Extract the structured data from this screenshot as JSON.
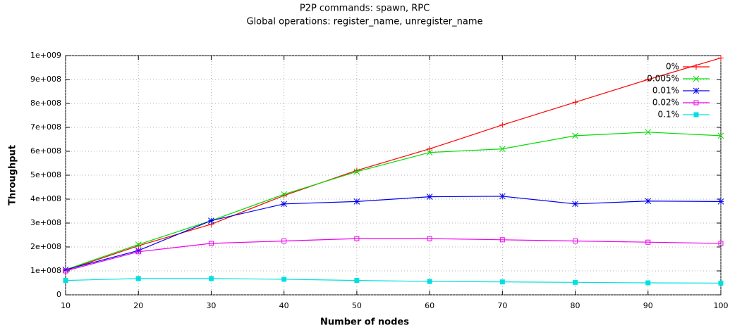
{
  "chart_data": {
    "type": "line",
    "title": "P2P commands: spawn, RPC",
    "subtitle": "Global operations: register_name, unregister_name",
    "x_label": "Number of nodes",
    "y_label": "Throughput",
    "x": [
      10,
      20,
      30,
      40,
      50,
      60,
      70,
      80,
      90,
      100
    ],
    "xlim": [
      10,
      100
    ],
    "xticks": [
      10,
      20,
      30,
      40,
      50,
      60,
      70,
      80,
      90,
      100
    ],
    "ylim": [
      0,
      1000000000
    ],
    "yticks": [
      0,
      {
        "value": 100000000,
        "label": "1e+008"
      },
      {
        "value": 200000000,
        "label": "2e+008"
      },
      {
        "value": 300000000,
        "label": "3e+008"
      },
      {
        "value": 400000000,
        "label": "4e+008"
      },
      {
        "value": 500000000,
        "label": "5e+008"
      },
      {
        "value": 600000000,
        "label": "6e+008"
      },
      {
        "value": 700000000,
        "label": "7e+008"
      },
      {
        "value": 800000000,
        "label": "8e+008"
      },
      {
        "value": 900000000,
        "label": "9e+008"
      },
      {
        "value": 1000000000,
        "label": "1e+009"
      }
    ],
    "grid": true,
    "legend": "top-right",
    "series": [
      {
        "name": "0%",
        "color": "#ff0000",
        "marker": "plus",
        "values": [
          102000000,
          205000000,
          295000000,
          415000000,
          520000000,
          610000000,
          710000000,
          805000000,
          900000000,
          990000000
        ]
      },
      {
        "name": "0.005%",
        "color": "#00dd00",
        "marker": "cross",
        "values": [
          105000000,
          210000000,
          310000000,
          420000000,
          515000000,
          595000000,
          610000000,
          665000000,
          680000000,
          665000000
        ]
      },
      {
        "name": "0.01%",
        "color": "#0000ee",
        "marker": "star",
        "values": [
          105000000,
          185000000,
          310000000,
          380000000,
          390000000,
          410000000,
          412000000,
          380000000,
          392000000,
          390000000
        ]
      },
      {
        "name": "0.02%",
        "color": "#ee00ee",
        "marker": "square",
        "values": [
          100000000,
          180000000,
          215000000,
          225000000,
          235000000,
          235000000,
          230000000,
          225000000,
          220000000,
          215000000
        ]
      },
      {
        "name": "0.1%",
        "color": "#00e0e0",
        "marker": "filled-square",
        "values": [
          60000000,
          68000000,
          68000000,
          65000000,
          60000000,
          56000000,
          54000000,
          52000000,
          50000000,
          49000000
        ]
      }
    ]
  }
}
